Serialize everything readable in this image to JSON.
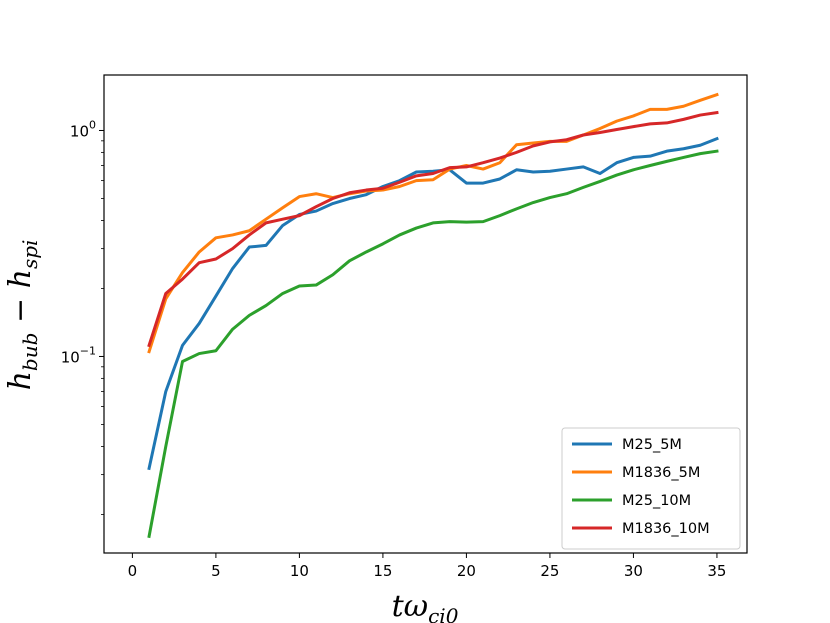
{
  "chart_data": {
    "type": "line",
    "yscale": "log",
    "title": "",
    "xlabel": {
      "base": "tω",
      "sub": "ci0"
    },
    "ylabel": {
      "h1": "h",
      "s1": "bub",
      "op": " − ",
      "h2": "h",
      "s2": "spi"
    },
    "xlim": [
      -1.7,
      36.8
    ],
    "ylim": [
      0.0135,
      1.76
    ],
    "xticks": [
      0,
      5,
      10,
      15,
      20,
      25,
      30,
      35
    ],
    "xtick_labels": [
      "0",
      "5",
      "10",
      "15",
      "20",
      "25",
      "30",
      "35"
    ],
    "yticks": [
      0.1,
      1.0
    ],
    "ytick_labels": [
      {
        "base": "10",
        "exp": "−1"
      },
      {
        "base": "10",
        "exp": "0"
      }
    ],
    "grid": false,
    "legend_position": "bottom-right",
    "x": [
      1,
      2,
      3,
      4,
      5,
      6,
      7,
      8,
      9,
      10,
      11,
      12,
      13,
      14,
      15,
      16,
      17,
      18,
      19,
      20,
      21,
      22,
      23,
      24,
      25,
      26,
      27,
      28,
      29,
      30,
      31,
      32,
      33,
      34,
      35
    ],
    "series": [
      {
        "name": "M25_5M",
        "color": "#1f77b4",
        "values": [
          0.032,
          0.07,
          0.112,
          0.14,
          0.185,
          0.245,
          0.305,
          0.31,
          0.38,
          0.425,
          0.44,
          0.475,
          0.5,
          0.52,
          0.565,
          0.6,
          0.655,
          0.66,
          0.67,
          0.585,
          0.585,
          0.61,
          0.67,
          0.655,
          0.66,
          0.675,
          0.69,
          0.645,
          0.72,
          0.76,
          0.77,
          0.81,
          0.83,
          0.86,
          0.92
        ]
      },
      {
        "name": "M1836_5M",
        "color": "#ff7f0e",
        "values": [
          0.105,
          0.18,
          0.235,
          0.29,
          0.335,
          0.345,
          0.36,
          0.405,
          0.455,
          0.51,
          0.525,
          0.505,
          0.525,
          0.54,
          0.545,
          0.565,
          0.6,
          0.605,
          0.675,
          0.7,
          0.675,
          0.72,
          0.865,
          0.88,
          0.895,
          0.895,
          0.955,
          1.02,
          1.1,
          1.16,
          1.24,
          1.24,
          1.28,
          1.36,
          1.44
        ]
      },
      {
        "name": "M25_10M",
        "color": "#2ca02c",
        "values": [
          0.016,
          0.04,
          0.095,
          0.103,
          0.106,
          0.132,
          0.152,
          0.168,
          0.19,
          0.205,
          0.207,
          0.23,
          0.265,
          0.29,
          0.315,
          0.345,
          0.37,
          0.39,
          0.395,
          0.393,
          0.395,
          0.42,
          0.45,
          0.48,
          0.505,
          0.525,
          0.56,
          0.595,
          0.635,
          0.67,
          0.7,
          0.73,
          0.76,
          0.79,
          0.81
        ]
      },
      {
        "name": "M1836_10M",
        "color": "#d62728",
        "values": [
          0.112,
          0.19,
          0.22,
          0.26,
          0.27,
          0.3,
          0.345,
          0.39,
          0.405,
          0.42,
          0.46,
          0.5,
          0.53,
          0.545,
          0.555,
          0.59,
          0.63,
          0.645,
          0.685,
          0.69,
          0.72,
          0.755,
          0.8,
          0.855,
          0.89,
          0.91,
          0.955,
          0.98,
          1.01,
          1.04,
          1.07,
          1.08,
          1.12,
          1.17,
          1.2
        ]
      }
    ]
  }
}
